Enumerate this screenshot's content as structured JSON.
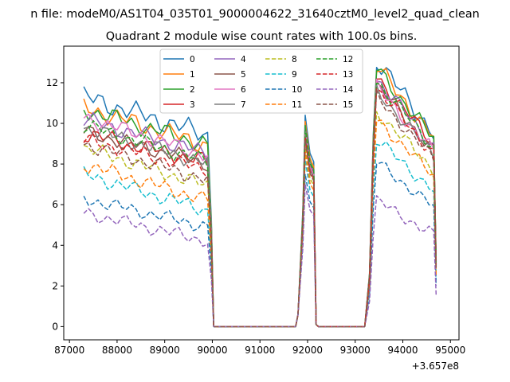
{
  "chart_data": {
    "type": "line",
    "suptitle": "n file: modeM0/AS1T04_035T01_9000004622_31640cztM0_level2_quad_clean",
    "title": "Quadrant 2 module wise count rates with 100.0s bins.",
    "xlabel": "",
    "ylabel": "",
    "x_offset_label": "+3.657e8",
    "xlim": [
      86880,
      95180
    ],
    "ylim": [
      -0.65,
      13.8
    ],
    "xticks": [
      87000,
      88000,
      89000,
      90000,
      91000,
      92000,
      93000,
      94000,
      95000
    ],
    "xtick_labels": [
      "87000",
      "88000",
      "89000",
      "90000",
      "91000",
      "92000",
      "93000",
      "94000",
      "95000"
    ],
    "yticks": [
      0,
      2,
      4,
      6,
      8,
      10,
      12
    ],
    "ytick_labels": [
      "0",
      "2",
      "4",
      "6",
      "8",
      "10",
      "12"
    ],
    "legend": {
      "placement": "top-center",
      "columns": 4
    },
    "series": [
      {
        "name": "0",
        "color": "#1f77b4",
        "dash": "solid",
        "base": 11.3,
        "slope": -1.9,
        "amp": 0.38,
        "phase": 0.0,
        "peak": 10.4,
        "flare": 13.1
      },
      {
        "name": "1",
        "color": "#ff7f0e",
        "dash": "solid",
        "base": 10.8,
        "slope": -1.9,
        "amp": 0.34,
        "phase": 0.7,
        "peak": 10.1,
        "flare": 12.8
      },
      {
        "name": "2",
        "color": "#2ca02c",
        "dash": "solid",
        "base": 10.7,
        "slope": -1.8,
        "amp": 0.32,
        "phase": 1.4,
        "peak": 9.9,
        "flare": 12.7
      },
      {
        "name": "3",
        "color": "#d62728",
        "dash": "solid",
        "base": 9.5,
        "slope": -1.4,
        "amp": 0.3,
        "phase": 2.1,
        "peak": 9.7,
        "flare": 12.3
      },
      {
        "name": "4",
        "color": "#9467bd",
        "dash": "solid",
        "base": 10.2,
        "slope": -1.7,
        "amp": 0.3,
        "phase": 2.8,
        "peak": 9.8,
        "flare": 12.2
      },
      {
        "name": "5",
        "color": "#8c564b",
        "dash": "solid",
        "base": 9.6,
        "slope": -1.6,
        "amp": 0.28,
        "phase": 3.5,
        "peak": 9.5,
        "flare": 11.9
      },
      {
        "name": "6",
        "color": "#e377c2",
        "dash": "solid",
        "base": 10.3,
        "slope": -1.9,
        "amp": 0.28,
        "phase": 4.2,
        "peak": 9.6,
        "flare": 11.8
      },
      {
        "name": "7",
        "color": "#7f7f7f",
        "dash": "solid",
        "base": 9.8,
        "slope": -1.8,
        "amp": 0.28,
        "phase": 4.9,
        "peak": 9.4,
        "flare": 11.6
      },
      {
        "name": "8",
        "color": "#bcbd22",
        "dash": "dashed",
        "base": 8.8,
        "slope": -1.9,
        "amp": 0.27,
        "phase": 5.6,
        "peak": 8.9,
        "flare": 10.6
      },
      {
        "name": "9",
        "color": "#17becf",
        "dash": "dashed",
        "base": 7.5,
        "slope": -1.8,
        "amp": 0.26,
        "phase": 0.4,
        "peak": 8.2,
        "flare": 9.2
      },
      {
        "name": "10",
        "color": "#1f77b4",
        "dash": "dashed",
        "base": 6.3,
        "slope": -1.4,
        "amp": 0.24,
        "phase": 1.1,
        "peak": 7.5,
        "flare": 8.1
      },
      {
        "name": "11",
        "color": "#ff7f0e",
        "dash": "dashed",
        "base": 8.0,
        "slope": -1.8,
        "amp": 0.26,
        "phase": 1.8,
        "peak": 8.6,
        "flare": 10.2
      },
      {
        "name": "12",
        "color": "#2ca02c",
        "dash": "dashed",
        "base": 9.9,
        "slope": -1.8,
        "amp": 0.28,
        "phase": 2.5,
        "peak": 9.8,
        "flare": 12.1
      },
      {
        "name": "13",
        "color": "#d62728",
        "dash": "dashed",
        "base": 9.2,
        "slope": -1.5,
        "amp": 0.27,
        "phase": 3.2,
        "peak": 9.3,
        "flare": 11.7
      },
      {
        "name": "14",
        "color": "#9467bd",
        "dash": "dashed",
        "base": 5.6,
        "slope": -1.4,
        "amp": 0.24,
        "phase": 3.9,
        "peak": 7.0,
        "flare": 6.2
      },
      {
        "name": "15",
        "color": "#8c564b",
        "dash": "dashed",
        "base": 9.0,
        "slope": -1.8,
        "amp": 0.27,
        "phase": 4.6,
        "peak": 9.2,
        "flare": 11.3
      }
    ],
    "time_segments": {
      "seg1": [
        87300,
        89930
      ],
      "drop_to_zero": 90030,
      "gap1": [
        90030,
        91750
      ],
      "spike": [
        91850,
        92170
      ],
      "gap2": [
        92230,
        93200
      ],
      "seg3": [
        93270,
        94680
      ]
    }
  }
}
